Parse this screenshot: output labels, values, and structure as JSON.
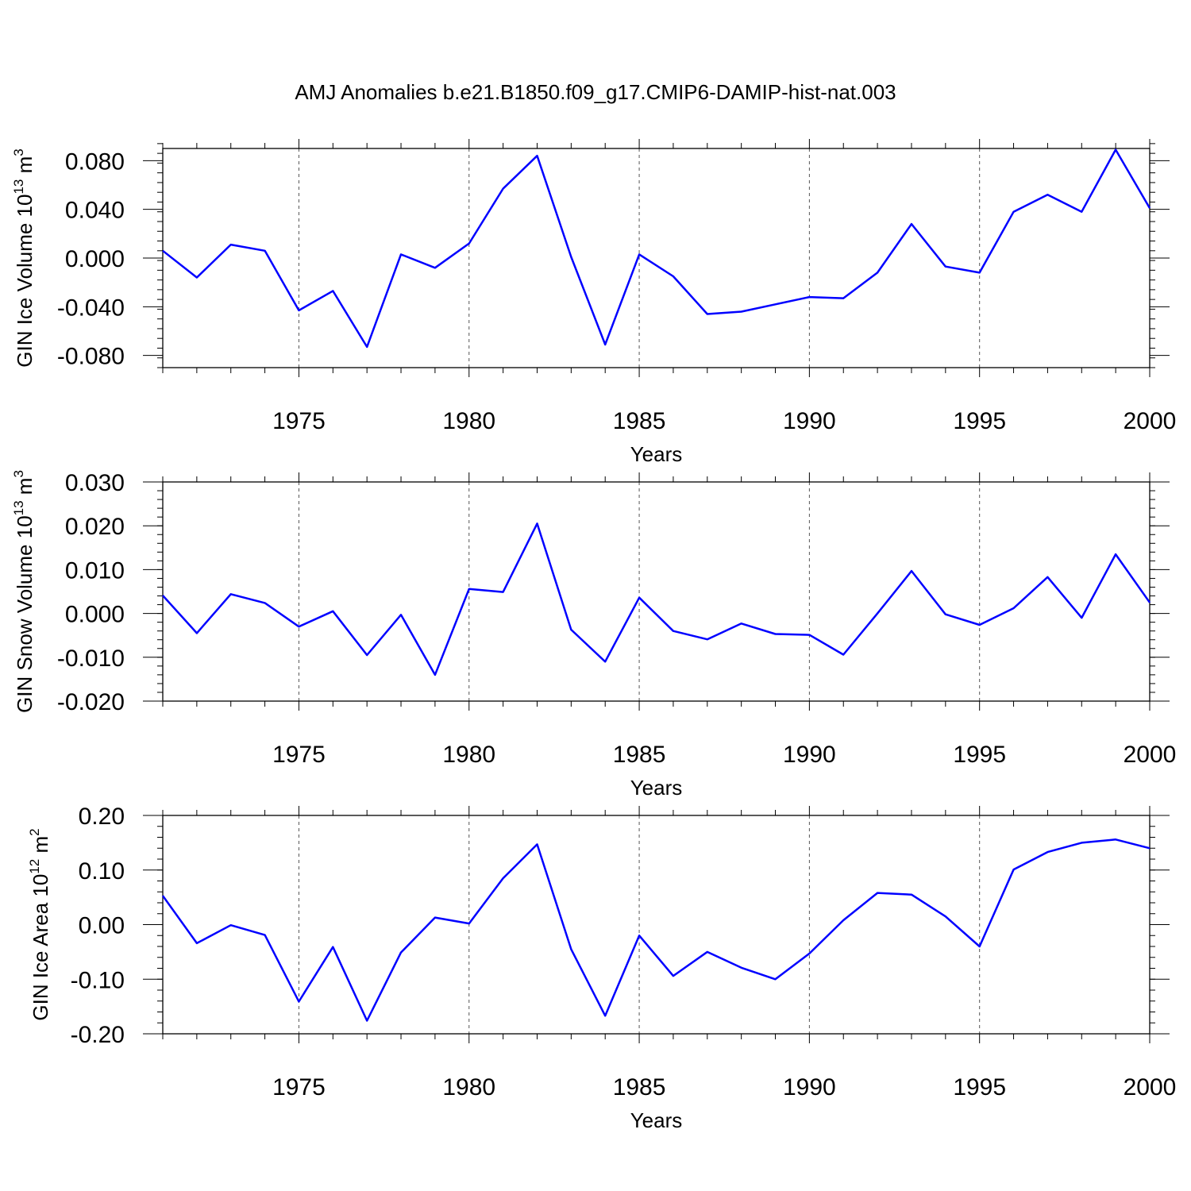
{
  "title": "AMJ Anomalies b.e21.B1850.f09_g17.CMIP6-DAMIP-hist-nat.003",
  "line_color": "#0000ff",
  "chart_data": [
    {
      "type": "line",
      "ylabel_main": "GIN Ice Volume 10",
      "ylabel_exp": "13",
      "ylabel_unit": " m",
      "ylabel_unit_exp": "3",
      "xlabel": "Years",
      "xlim": [
        1971,
        2000
      ],
      "ylim": [
        -0.09,
        0.09
      ],
      "xticks": [
        1975,
        1980,
        1985,
        1990,
        1995,
        2000
      ],
      "yticks": [
        -0.08,
        -0.04,
        0.0,
        0.04,
        0.08
      ],
      "yticklabels": [
        "-0.080",
        "-0.040",
        "0.000",
        "0.040",
        "0.080"
      ],
      "yminor": 0.008,
      "grid": "vertical dashed at major x ticks",
      "x": [
        1971,
        1972,
        1973,
        1974,
        1975,
        1976,
        1977,
        1978,
        1979,
        1980,
        1981,
        1982,
        1983,
        1984,
        1985,
        1986,
        1987,
        1988,
        1989,
        1990,
        1991,
        1992,
        1993,
        1994,
        1995,
        1996,
        1997,
        1998,
        1999,
        2000
      ],
      "y": [
        0.006,
        -0.016,
        0.011,
        0.006,
        -0.043,
        -0.027,
        -0.073,
        0.003,
        -0.008,
        0.012,
        0.057,
        0.084,
        0.001,
        -0.071,
        0.003,
        -0.015,
        -0.046,
        -0.044,
        -0.038,
        -0.032,
        -0.033,
        -0.012,
        0.028,
        -0.007,
        -0.012,
        0.038,
        0.052,
        0.038,
        0.089,
        0.041
      ]
    },
    {
      "type": "line",
      "ylabel_main": "GIN Snow Volume 10",
      "ylabel_exp": "13",
      "ylabel_unit": " m",
      "ylabel_unit_exp": "3",
      "xlabel": "Years",
      "xlim": [
        1971,
        2000
      ],
      "ylim": [
        -0.02,
        0.03
      ],
      "xticks": [
        1975,
        1980,
        1985,
        1990,
        1995,
        2000
      ],
      "yticks": [
        -0.02,
        -0.01,
        0.0,
        0.01,
        0.02,
        0.03
      ],
      "yticklabels": [
        "-0.020",
        "-0.010",
        "0.000",
        "0.010",
        "0.020",
        "0.030"
      ],
      "yminor": 0.002,
      "grid": "vertical dashed at major x ticks",
      "x": [
        1971,
        1972,
        1973,
        1974,
        1975,
        1976,
        1977,
        1978,
        1979,
        1980,
        1981,
        1982,
        1983,
        1984,
        1985,
        1986,
        1987,
        1988,
        1989,
        1990,
        1991,
        1992,
        1993,
        1994,
        1995,
        1996,
        1997,
        1998,
        1999,
        2000
      ],
      "y": [
        0.0041,
        -0.0045,
        0.0044,
        0.0024,
        -0.003,
        0.0005,
        -0.0095,
        -0.0003,
        -0.014,
        0.0056,
        0.0049,
        0.0205,
        -0.0037,
        -0.011,
        0.0036,
        -0.004,
        -0.0059,
        -0.0023,
        -0.0047,
        -0.0049,
        -0.0094,
        0.0,
        0.0097,
        -0.0002,
        -0.0026,
        0.0012,
        0.0083,
        -0.001,
        0.0135,
        0.0025
      ]
    },
    {
      "type": "line",
      "ylabel_main": "GIN Ice Area 10",
      "ylabel_exp": "12",
      "ylabel_unit": " m",
      "ylabel_unit_exp": "2",
      "xlabel": "Years",
      "xlim": [
        1971,
        2000
      ],
      "ylim": [
        -0.2,
        0.2
      ],
      "xticks": [
        1975,
        1980,
        1985,
        1990,
        1995,
        2000
      ],
      "yticks": [
        -0.2,
        -0.1,
        0.0,
        0.1,
        0.2
      ],
      "yticklabels": [
        "-0.20",
        "-0.10",
        "0.00",
        "0.10",
        "0.20"
      ],
      "yminor": 0.02,
      "grid": "vertical dashed at major x ticks",
      "x": [
        1971,
        1972,
        1973,
        1974,
        1975,
        1976,
        1977,
        1978,
        1979,
        1980,
        1981,
        1982,
        1983,
        1984,
        1985,
        1986,
        1987,
        1988,
        1989,
        1990,
        1991,
        1992,
        1993,
        1994,
        1995,
        1996,
        1997,
        1998,
        1999,
        2000
      ],
      "y": [
        0.053,
        -0.034,
        -0.001,
        -0.019,
        -0.141,
        -0.041,
        -0.176,
        -0.051,
        0.013,
        0.002,
        0.085,
        0.147,
        -0.045,
        -0.167,
        -0.02,
        -0.094,
        -0.05,
        -0.079,
        -0.1,
        -0.053,
        0.008,
        0.058,
        0.055,
        0.015,
        -0.04,
        0.101,
        0.133,
        0.15,
        0.156,
        0.14
      ]
    }
  ]
}
